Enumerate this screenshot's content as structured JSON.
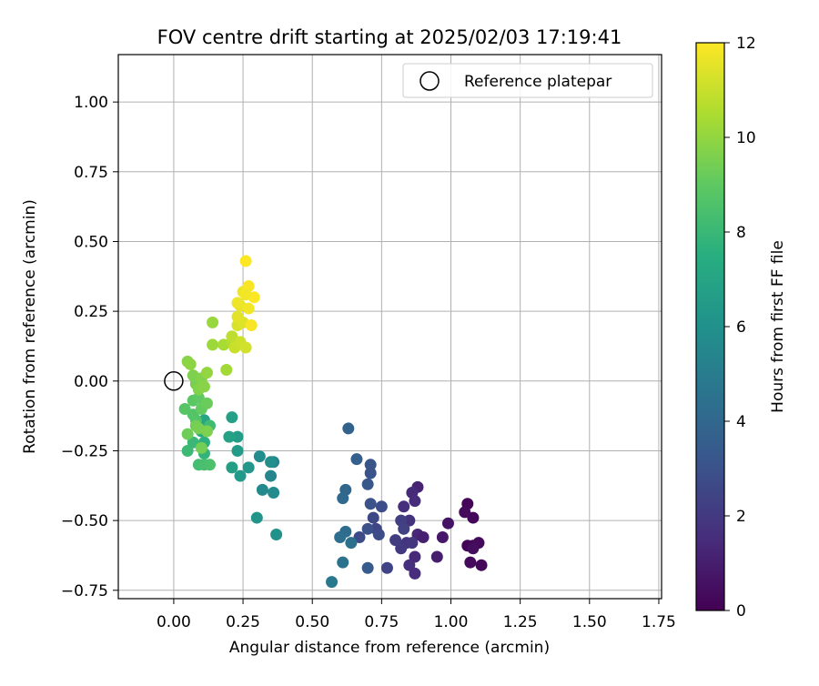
{
  "chart_data": {
    "type": "scatter",
    "title": "FOV centre drift starting at 2025/02/03 17:19:41",
    "xlabel": "Angular distance from reference (arcmin)",
    "ylabel": "Rotation from reference (arcmin)",
    "xlim": [
      -0.2,
      1.76
    ],
    "ylim": [
      -0.78,
      1.17
    ],
    "x_ticks": [
      "0.00",
      "0.25",
      "0.50",
      "0.75",
      "1.00",
      "1.25",
      "1.50",
      "1.75"
    ],
    "y_ticks": [
      "-0.75",
      "-0.50",
      "-0.25",
      "0.00",
      "0.25",
      "0.50",
      "0.75",
      "1.00"
    ],
    "grid": true,
    "legend": {
      "position": "top-right",
      "label": "Reference platepar"
    },
    "reference_point": {
      "x": 0.0,
      "y": 0.0,
      "marker": "hollow-circle"
    },
    "colorbar": {
      "label": "Hours from first FF file",
      "colormap": "viridis",
      "range": [
        0,
        12
      ],
      "ticks": [
        "0",
        "2",
        "4",
        "6",
        "8",
        "10",
        "12"
      ]
    },
    "points": [
      {
        "x": 1.06,
        "y": -0.44,
        "h": 0.1
      },
      {
        "x": 1.08,
        "y": -0.49,
        "h": 0.2
      },
      {
        "x": 1.05,
        "y": -0.47,
        "h": 0.3
      },
      {
        "x": 1.06,
        "y": -0.59,
        "h": 0.1
      },
      {
        "x": 1.08,
        "y": -0.59,
        "h": 0.2
      },
      {
        "x": 1.1,
        "y": -0.58,
        "h": 0.3
      },
      {
        "x": 1.08,
        "y": -0.6,
        "h": 0.4
      },
      {
        "x": 1.07,
        "y": -0.65,
        "h": 0.3
      },
      {
        "x": 1.11,
        "y": -0.66,
        "h": 0.2
      },
      {
        "x": 0.99,
        "y": -0.51,
        "h": 0.6
      },
      {
        "x": 0.97,
        "y": -0.56,
        "h": 0.8
      },
      {
        "x": 0.95,
        "y": -0.63,
        "h": 1.0
      },
      {
        "x": 0.88,
        "y": -0.38,
        "h": 1.2
      },
      {
        "x": 0.86,
        "y": -0.4,
        "h": 1.4
      },
      {
        "x": 0.87,
        "y": -0.43,
        "h": 1.5
      },
      {
        "x": 0.83,
        "y": -0.45,
        "h": 1.6
      },
      {
        "x": 0.85,
        "y": -0.5,
        "h": 1.7
      },
      {
        "x": 0.88,
        "y": -0.55,
        "h": 1.3
      },
      {
        "x": 0.9,
        "y": -0.56,
        "h": 1.1
      },
      {
        "x": 0.87,
        "y": -0.63,
        "h": 1.4
      },
      {
        "x": 0.85,
        "y": -0.66,
        "h": 1.6
      },
      {
        "x": 0.87,
        "y": -0.69,
        "h": 1.5
      },
      {
        "x": 0.84,
        "y": -0.58,
        "h": 1.8
      },
      {
        "x": 0.86,
        "y": -0.58,
        "h": 1.9
      },
      {
        "x": 0.82,
        "y": -0.6,
        "h": 2.0
      },
      {
        "x": 0.8,
        "y": -0.57,
        "h": 2.1
      },
      {
        "x": 0.82,
        "y": -0.5,
        "h": 2.2
      },
      {
        "x": 0.83,
        "y": -0.53,
        "h": 2.3
      },
      {
        "x": 0.77,
        "y": -0.67,
        "h": 2.4
      },
      {
        "x": 0.73,
        "y": -0.53,
        "h": 2.5
      },
      {
        "x": 0.72,
        "y": -0.49,
        "h": 2.6
      },
      {
        "x": 0.74,
        "y": -0.55,
        "h": 2.7
      },
      {
        "x": 0.75,
        "y": -0.45,
        "h": 2.8
      },
      {
        "x": 0.71,
        "y": -0.44,
        "h": 3.0
      },
      {
        "x": 0.7,
        "y": -0.53,
        "h": 2.9
      },
      {
        "x": 0.67,
        "y": -0.56,
        "h": 2.7
      },
      {
        "x": 0.71,
        "y": -0.33,
        "h": 3.1
      },
      {
        "x": 0.71,
        "y": -0.3,
        "h": 3.2
      },
      {
        "x": 0.7,
        "y": -0.37,
        "h": 3.3
      },
      {
        "x": 0.7,
        "y": -0.67,
        "h": 3.4
      },
      {
        "x": 0.66,
        "y": -0.28,
        "h": 3.6
      },
      {
        "x": 0.63,
        "y": -0.17,
        "h": 3.8
      },
      {
        "x": 0.62,
        "y": -0.39,
        "h": 4.0
      },
      {
        "x": 0.61,
        "y": -0.42,
        "h": 4.1
      },
      {
        "x": 0.62,
        "y": -0.54,
        "h": 4.2
      },
      {
        "x": 0.6,
        "y": -0.56,
        "h": 4.3
      },
      {
        "x": 0.64,
        "y": -0.58,
        "h": 4.4
      },
      {
        "x": 0.61,
        "y": -0.65,
        "h": 4.5
      },
      {
        "x": 0.57,
        "y": -0.72,
        "h": 4.8
      },
      {
        "x": 0.36,
        "y": -0.29,
        "h": 5.4
      },
      {
        "x": 0.31,
        "y": -0.27,
        "h": 5.8
      },
      {
        "x": 0.32,
        "y": -0.39,
        "h": 5.6
      },
      {
        "x": 0.35,
        "y": -0.34,
        "h": 5.5
      },
      {
        "x": 0.35,
        "y": -0.29,
        "h": 5.9
      },
      {
        "x": 0.36,
        "y": -0.4,
        "h": 5.7
      },
      {
        "x": 0.37,
        "y": -0.55,
        "h": 6.0
      },
      {
        "x": 0.3,
        "y": -0.49,
        "h": 6.2
      },
      {
        "x": 0.27,
        "y": -0.31,
        "h": 6.3
      },
      {
        "x": 0.24,
        "y": -0.34,
        "h": 6.4
      },
      {
        "x": 0.23,
        "y": -0.25,
        "h": 6.5
      },
      {
        "x": 0.23,
        "y": -0.2,
        "h": 6.6
      },
      {
        "x": 0.21,
        "y": -0.31,
        "h": 6.7
      },
      {
        "x": 0.21,
        "y": -0.13,
        "h": 6.8
      },
      {
        "x": 0.2,
        "y": -0.2,
        "h": 6.9
      },
      {
        "x": 0.11,
        "y": -0.14,
        "h": 7.0
      },
      {
        "x": 0.1,
        "y": -0.18,
        "h": 7.3
      },
      {
        "x": 0.11,
        "y": -0.22,
        "h": 7.6
      },
      {
        "x": 0.11,
        "y": -0.26,
        "h": 7.8
      },
      {
        "x": 0.07,
        "y": -0.22,
        "h": 8.0
      },
      {
        "x": 0.05,
        "y": -0.25,
        "h": 8.1
      },
      {
        "x": 0.13,
        "y": -0.16,
        "h": 8.2
      },
      {
        "x": 0.09,
        "y": -0.3,
        "h": 8.3
      },
      {
        "x": 0.11,
        "y": -0.3,
        "h": 8.4
      },
      {
        "x": 0.13,
        "y": -0.3,
        "h": 8.5
      },
      {
        "x": 0.08,
        "y": -0.14,
        "h": 8.6
      },
      {
        "x": 0.07,
        "y": -0.12,
        "h": 8.7
      },
      {
        "x": 0.04,
        "y": -0.1,
        "h": 8.8
      },
      {
        "x": 0.07,
        "y": -0.07,
        "h": 8.9
      },
      {
        "x": 0.09,
        "y": -0.06,
        "h": 9.0
      },
      {
        "x": 0.1,
        "y": -0.1,
        "h": 9.1
      },
      {
        "x": 0.12,
        "y": -0.08,
        "h": 9.2
      },
      {
        "x": 0.05,
        "y": -0.19,
        "h": 9.3
      },
      {
        "x": 0.08,
        "y": -0.16,
        "h": 9.4
      },
      {
        "x": 0.09,
        "y": -0.17,
        "h": 9.5
      },
      {
        "x": 0.12,
        "y": -0.18,
        "h": 9.6
      },
      {
        "x": 0.1,
        "y": -0.24,
        "h": 9.4
      },
      {
        "x": 0.08,
        "y": -0.01,
        "h": 9.5
      },
      {
        "x": 0.07,
        "y": 0.02,
        "h": 9.6
      },
      {
        "x": 0.1,
        "y": 0.01,
        "h": 9.7
      },
      {
        "x": 0.05,
        "y": 0.07,
        "h": 9.8
      },
      {
        "x": 0.06,
        "y": 0.06,
        "h": 9.9
      },
      {
        "x": 0.09,
        "y": -0.03,
        "h": 9.7
      },
      {
        "x": 0.11,
        "y": -0.02,
        "h": 9.8
      },
      {
        "x": 0.12,
        "y": 0.03,
        "h": 10.0
      },
      {
        "x": 0.14,
        "y": 0.21,
        "h": 10.1
      },
      {
        "x": 0.14,
        "y": 0.13,
        "h": 10.2
      },
      {
        "x": 0.19,
        "y": 0.04,
        "h": 10.3
      },
      {
        "x": 0.18,
        "y": 0.13,
        "h": 10.4
      },
      {
        "x": 0.21,
        "y": 0.14,
        "h": 10.6
      },
      {
        "x": 0.21,
        "y": 0.16,
        "h": 10.8
      },
      {
        "x": 0.22,
        "y": 0.12,
        "h": 11.0
      },
      {
        "x": 0.24,
        "y": 0.14,
        "h": 11.1
      },
      {
        "x": 0.26,
        "y": 0.12,
        "h": 11.2
      },
      {
        "x": 0.23,
        "y": 0.2,
        "h": 11.3
      },
      {
        "x": 0.25,
        "y": 0.21,
        "h": 11.4
      },
      {
        "x": 0.23,
        "y": 0.23,
        "h": 11.5
      },
      {
        "x": 0.24,
        "y": 0.27,
        "h": 11.6
      },
      {
        "x": 0.23,
        "y": 0.28,
        "h": 11.7
      },
      {
        "x": 0.27,
        "y": 0.26,
        "h": 11.8
      },
      {
        "x": 0.28,
        "y": 0.2,
        "h": 11.9
      },
      {
        "x": 0.25,
        "y": 0.32,
        "h": 11.7
      },
      {
        "x": 0.27,
        "y": 0.34,
        "h": 11.9
      },
      {
        "x": 0.29,
        "y": 0.3,
        "h": 12.0
      },
      {
        "x": 0.26,
        "y": 0.43,
        "h": 12.0
      },
      {
        "x": 0.26,
        "y": 0.31,
        "h": 11.8
      }
    ]
  }
}
